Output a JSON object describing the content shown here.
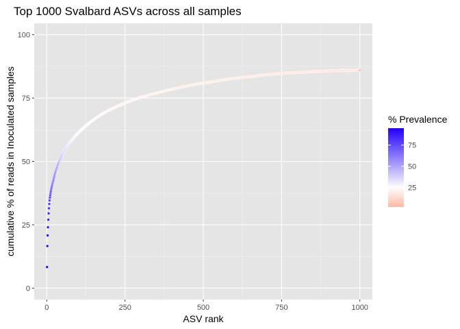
{
  "chart_data": {
    "type": "scatter",
    "title": "Top 1000 Svalbard ASVs across all samples",
    "xlabel": "ASV rank",
    "ylabel": "cumulative % of reads in Inoculated samples",
    "xlim": [
      -40,
      1040
    ],
    "ylim": [
      -4.5,
      104.5
    ],
    "x_ticks": [
      0,
      250,
      500,
      750,
      1000
    ],
    "y_ticks": [
      0,
      25,
      50,
      75,
      100
    ],
    "x_tick_labels": [
      "0",
      "250",
      "500",
      "750",
      "1000"
    ],
    "y_tick_labels": [
      "0",
      "25",
      "50",
      "75",
      "100"
    ],
    "grid": true,
    "n_points": 1000,
    "x": [
      1,
      2,
      3,
      4,
      5,
      6,
      7,
      8,
      9,
      10,
      11,
      12,
      14,
      16,
      18,
      20,
      25,
      30,
      35,
      40,
      45,
      50,
      60,
      70,
      80,
      90,
      100,
      125,
      150,
      175,
      200,
      250,
      300,
      350,
      400,
      450,
      500,
      550,
      600,
      650,
      700,
      750,
      800,
      850,
      900,
      950,
      1000
    ],
    "y": [
      8.3,
      16.6,
      20.8,
      24.0,
      27.0,
      29.5,
      31.5,
      33.2,
      34.6,
      35.7,
      36.6,
      37.4,
      38.8,
      40.0,
      41.1,
      42.1,
      44.6,
      46.8,
      48.6,
      50.2,
      51.6,
      52.9,
      55.0,
      56.9,
      58.5,
      59.9,
      61.2,
      64.1,
      66.5,
      68.6,
      70.3,
      73.1,
      75.3,
      77.0,
      78.5,
      79.8,
      80.9,
      81.9,
      82.8,
      83.5,
      84.2,
      84.7,
      85.1,
      85.4,
      85.7,
      85.9,
      86.0
    ],
    "prevalence": [
      95,
      94,
      92,
      90,
      88,
      86,
      84,
      82,
      80,
      78,
      76,
      74,
      72,
      70,
      68,
      65,
      62,
      58,
      55,
      52,
      48,
      45,
      40,
      36,
      33,
      30,
      28,
      24,
      22,
      20,
      18,
      16,
      14,
      12,
      11,
      10,
      9,
      8,
      7,
      6,
      5,
      5,
      4,
      4,
      3,
      3,
      2
    ],
    "legend": {
      "title": "% Prevalence",
      "position": "right",
      "ticks": [
        25,
        50,
        75
      ],
      "tick_labels": [
        "25",
        "50",
        "75"
      ],
      "range": [
        2,
        95
      ],
      "colors": {
        "low": "#ffb8a3",
        "mid": "#ffffff",
        "high": "#2200ff"
      },
      "midpoint": 25
    },
    "colors": {
      "panel": "#e5e5e5",
      "grid_major": "#ffffff",
      "grid_minor": "#f2f2f2"
    }
  }
}
